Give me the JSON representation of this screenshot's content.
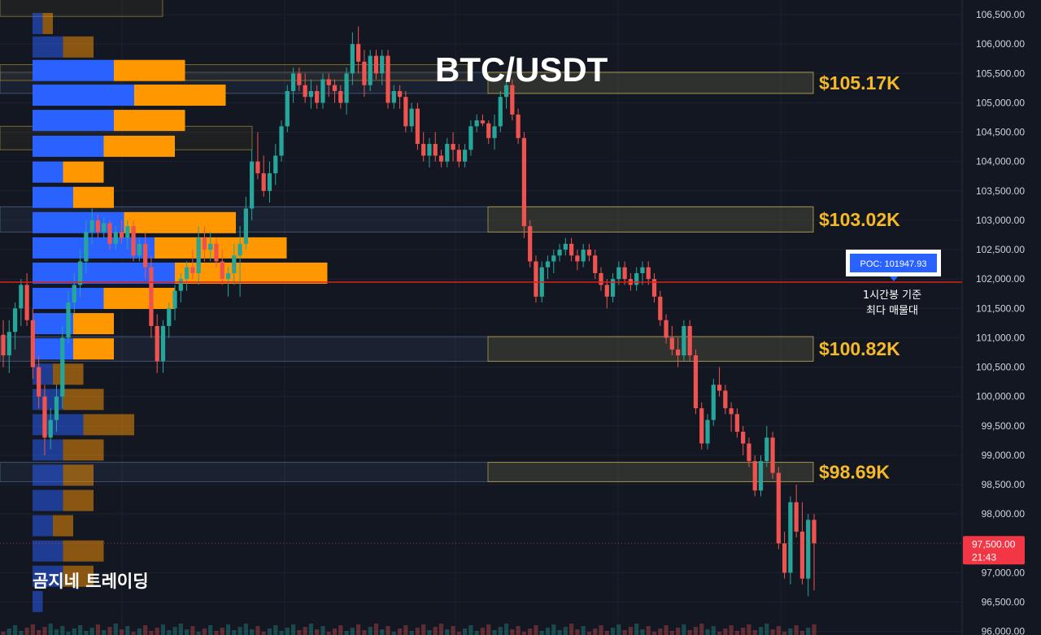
{
  "chart_data": {
    "type": "candlestick",
    "title": "BTC/USDT",
    "symbol": "BTC/USDT",
    "watermark": "곰지네 트레이딩",
    "ylim": [
      95940,
      106750
    ],
    "y_ticks": [
      {
        "value": 106500,
        "label": "106,500.00"
      },
      {
        "value": 106000,
        "label": "106,000.00"
      },
      {
        "value": 105500,
        "label": "105,500.00"
      },
      {
        "value": 105000,
        "label": "105,000.00"
      },
      {
        "value": 104500,
        "label": "104,500.00"
      },
      {
        "value": 104000,
        "label": "104,000.00"
      },
      {
        "value": 103500,
        "label": "103,500.00"
      },
      {
        "value": 103000,
        "label": "103,000.00"
      },
      {
        "value": 102500,
        "label": "102,500.00"
      },
      {
        "value": 102000,
        "label": "102,000.00"
      },
      {
        "value": 101500,
        "label": "101,500.00"
      },
      {
        "value": 101000,
        "label": "101,000.00"
      },
      {
        "value": 100500,
        "label": "100,500.00"
      },
      {
        "value": 100000,
        "label": "100,000.00"
      },
      {
        "value": 99500,
        "label": "99,500.00"
      },
      {
        "value": 99000,
        "label": "99,000.00"
      },
      {
        "value": 98500,
        "label": "98,500.00"
      },
      {
        "value": 98000,
        "label": "98,000.00"
      },
      {
        "value": 97000,
        "label": "97,000.00"
      },
      {
        "value": 96500,
        "label": "96,500.00"
      },
      {
        "value": 96000,
        "label": "96,000.00"
      }
    ],
    "current_price": {
      "value": 97500,
      "label": "97,500.00",
      "countdown": "21:43"
    },
    "poc": {
      "value": 101947.93,
      "label": "POC: 101947.93",
      "note_line1": "1시간봉 기준",
      "note_line2": "최다 매물대"
    },
    "levels": [
      {
        "label": "$105.17K",
        "low": 105160,
        "high": 105520
      },
      {
        "label": "$103.02K",
        "low": 102800,
        "high": 103230
      },
      {
        "label": "$100.82K",
        "low": 100600,
        "high": 101020
      },
      {
        "label": "$98.69K",
        "low": 98550,
        "high": 98880
      }
    ],
    "volume_profile": [
      {
        "price": 106350,
        "up": 1,
        "down": 1
      },
      {
        "price": 105950,
        "up": 3,
        "down": 3
      },
      {
        "price": 105550,
        "up": 8,
        "down": 7
      },
      {
        "price": 105130,
        "up": 10,
        "down": 9
      },
      {
        "price": 104700,
        "up": 8,
        "down": 7
      },
      {
        "price": 104260,
        "up": 7,
        "down": 7
      },
      {
        "price": 103820,
        "up": 3,
        "down": 4
      },
      {
        "price": 103390,
        "up": 4,
        "down": 4
      },
      {
        "price": 102960,
        "up": 9,
        "down": 11
      },
      {
        "price": 102530,
        "up": 12,
        "down": 13
      },
      {
        "price": 102100,
        "up": 14,
        "down": 15
      },
      {
        "price": 101670,
        "up": 7,
        "down": 7
      },
      {
        "price": 101240,
        "up": 4,
        "down": 4
      },
      {
        "price": 100810,
        "up": 4,
        "down": 4
      },
      {
        "price": 100380,
        "up": 2,
        "down": 3
      },
      {
        "price": 99950,
        "up": 3,
        "down": 4
      },
      {
        "price": 99520,
        "up": 5,
        "down": 5
      },
      {
        "price": 99090,
        "up": 3,
        "down": 4
      },
      {
        "price": 98660,
        "up": 3,
        "down": 3
      },
      {
        "price": 98230,
        "up": 3,
        "down": 3
      },
      {
        "price": 97800,
        "up": 2,
        "down": 2
      },
      {
        "price": 97370,
        "up": 3,
        "down": 4
      },
      {
        "price": 96940,
        "up": 3,
        "down": 3
      },
      {
        "price": 96510,
        "up": 1,
        "down": 0
      }
    ],
    "candles": [
      {
        "o": 101050,
        "h": 101300,
        "l": 100500,
        "c": 100700
      },
      {
        "o": 100700,
        "h": 101300,
        "l": 100400,
        "c": 101100
      },
      {
        "o": 101100,
        "h": 101600,
        "l": 100800,
        "c": 101500
      },
      {
        "o": 101500,
        "h": 102000,
        "l": 101200,
        "c": 101900
      },
      {
        "o": 101900,
        "h": 102100,
        "l": 101200,
        "c": 101300
      },
      {
        "o": 101300,
        "h": 101500,
        "l": 100300,
        "c": 100500
      },
      {
        "o": 100500,
        "h": 100700,
        "l": 99800,
        "c": 100000
      },
      {
        "o": 100000,
        "h": 100200,
        "l": 99000,
        "c": 99300
      },
      {
        "o": 99300,
        "h": 99800,
        "l": 99100,
        "c": 99600
      },
      {
        "o": 99600,
        "h": 100200,
        "l": 99400,
        "c": 100000
      },
      {
        "o": 100000,
        "h": 101200,
        "l": 99800,
        "c": 101000
      },
      {
        "o": 101000,
        "h": 101800,
        "l": 100900,
        "c": 101600
      },
      {
        "o": 101600,
        "h": 102100,
        "l": 101400,
        "c": 101900
      },
      {
        "o": 101900,
        "h": 102500,
        "l": 101700,
        "c": 102300
      },
      {
        "o": 102300,
        "h": 103000,
        "l": 102100,
        "c": 102800
      },
      {
        "o": 102800,
        "h": 103200,
        "l": 102600,
        "c": 103000
      },
      {
        "o": 103000,
        "h": 103100,
        "l": 102700,
        "c": 102800
      },
      {
        "o": 102800,
        "h": 103050,
        "l": 102700,
        "c": 102950
      },
      {
        "o": 102950,
        "h": 103000,
        "l": 102500,
        "c": 102600
      },
      {
        "o": 102600,
        "h": 102900,
        "l": 102500,
        "c": 102800
      },
      {
        "o": 102800,
        "h": 103000,
        "l": 102600,
        "c": 102700
      },
      {
        "o": 102700,
        "h": 103000,
        "l": 102500,
        "c": 102900
      },
      {
        "o": 102900,
        "h": 103000,
        "l": 102300,
        "c": 102400
      },
      {
        "o": 102400,
        "h": 102700,
        "l": 102300,
        "c": 102600
      },
      {
        "o": 102600,
        "h": 102800,
        "l": 102000,
        "c": 102200
      },
      {
        "o": 102200,
        "h": 102400,
        "l": 101000,
        "c": 101200
      },
      {
        "o": 101200,
        "h": 101400,
        "l": 100400,
        "c": 100600
      },
      {
        "o": 100600,
        "h": 101300,
        "l": 100400,
        "c": 101200
      },
      {
        "o": 101200,
        "h": 101600,
        "l": 101000,
        "c": 101500
      },
      {
        "o": 101500,
        "h": 101900,
        "l": 101300,
        "c": 101800
      },
      {
        "o": 101800,
        "h": 102100,
        "l": 101600,
        "c": 102000
      },
      {
        "o": 102000,
        "h": 102300,
        "l": 101800,
        "c": 102200
      },
      {
        "o": 102200,
        "h": 102500,
        "l": 102000,
        "c": 102100
      },
      {
        "o": 102100,
        "h": 102900,
        "l": 101900,
        "c": 102700
      },
      {
        "o": 102700,
        "h": 102900,
        "l": 102300,
        "c": 102500
      },
      {
        "o": 102500,
        "h": 102800,
        "l": 102300,
        "c": 102600
      },
      {
        "o": 102600,
        "h": 102700,
        "l": 102200,
        "c": 102300
      },
      {
        "o": 102300,
        "h": 102500,
        "l": 101900,
        "c": 102000
      },
      {
        "o": 102000,
        "h": 102200,
        "l": 101700,
        "c": 102100
      },
      {
        "o": 102100,
        "h": 102600,
        "l": 101900,
        "c": 102400
      },
      {
        "o": 102400,
        "h": 102900,
        "l": 101700,
        "c": 102600
      },
      {
        "o": 102600,
        "h": 103400,
        "l": 102500,
        "c": 103200
      },
      {
        "o": 103200,
        "h": 104200,
        "l": 103000,
        "c": 104000
      },
      {
        "o": 104000,
        "h": 104500,
        "l": 103700,
        "c": 103800
      },
      {
        "o": 103800,
        "h": 104100,
        "l": 103400,
        "c": 103500
      },
      {
        "o": 103500,
        "h": 104000,
        "l": 103300,
        "c": 103800
      },
      {
        "o": 103800,
        "h": 104300,
        "l": 103600,
        "c": 104100
      },
      {
        "o": 104100,
        "h": 104700,
        "l": 104000,
        "c": 104600
      },
      {
        "o": 104600,
        "h": 105300,
        "l": 104500,
        "c": 105200
      },
      {
        "o": 105200,
        "h": 105600,
        "l": 105000,
        "c": 105500
      },
      {
        "o": 105500,
        "h": 105600,
        "l": 105200,
        "c": 105300
      },
      {
        "o": 105300,
        "h": 105500,
        "l": 105000,
        "c": 105100
      },
      {
        "o": 105100,
        "h": 105400,
        "l": 104900,
        "c": 105200
      },
      {
        "o": 105200,
        "h": 105300,
        "l": 104900,
        "c": 105000
      },
      {
        "o": 105000,
        "h": 105500,
        "l": 104900,
        "c": 105400
      },
      {
        "o": 105400,
        "h": 105500,
        "l": 105100,
        "c": 105300
      },
      {
        "o": 105300,
        "h": 105400,
        "l": 105000,
        "c": 105200
      },
      {
        "o": 105200,
        "h": 105300,
        "l": 104900,
        "c": 105000
      },
      {
        "o": 105000,
        "h": 105600,
        "l": 104800,
        "c": 105500
      },
      {
        "o": 105500,
        "h": 106200,
        "l": 105300,
        "c": 106000
      },
      {
        "o": 106000,
        "h": 106300,
        "l": 105500,
        "c": 105700
      },
      {
        "o": 105700,
        "h": 105900,
        "l": 105100,
        "c": 105300
      },
      {
        "o": 105300,
        "h": 105900,
        "l": 105200,
        "c": 105800
      },
      {
        "o": 105800,
        "h": 105900,
        "l": 105400,
        "c": 105500
      },
      {
        "o": 105500,
        "h": 105900,
        "l": 105300,
        "c": 105800
      },
      {
        "o": 105800,
        "h": 105900,
        "l": 104900,
        "c": 105000
      },
      {
        "o": 105000,
        "h": 105300,
        "l": 104900,
        "c": 105200
      },
      {
        "o": 105200,
        "h": 105300,
        "l": 104900,
        "c": 105100
      },
      {
        "o": 105100,
        "h": 105200,
        "l": 104500,
        "c": 104600
      },
      {
        "o": 104600,
        "h": 105000,
        "l": 104500,
        "c": 104900
      },
      {
        "o": 104900,
        "h": 105000,
        "l": 104200,
        "c": 104300
      },
      {
        "o": 104300,
        "h": 104500,
        "l": 104000,
        "c": 104100
      },
      {
        "o": 104100,
        "h": 104400,
        "l": 103900,
        "c": 104300
      },
      {
        "o": 104300,
        "h": 104500,
        "l": 104000,
        "c": 104100
      },
      {
        "o": 104100,
        "h": 104200,
        "l": 103900,
        "c": 104000
      },
      {
        "o": 104000,
        "h": 104400,
        "l": 103900,
        "c": 104300
      },
      {
        "o": 104300,
        "h": 104500,
        "l": 104000,
        "c": 104200
      },
      {
        "o": 104200,
        "h": 104300,
        "l": 103900,
        "c": 104000
      },
      {
        "o": 104000,
        "h": 104300,
        "l": 103900,
        "c": 104200
      },
      {
        "o": 104200,
        "h": 104700,
        "l": 104100,
        "c": 104600
      },
      {
        "o": 104600,
        "h": 104800,
        "l": 104500,
        "c": 104700
      },
      {
        "o": 104700,
        "h": 104800,
        "l": 104600,
        "c": 104650
      },
      {
        "o": 104650,
        "h": 104700,
        "l": 104300,
        "c": 104400
      },
      {
        "o": 104400,
        "h": 104800,
        "l": 104200,
        "c": 104600
      },
      {
        "o": 104600,
        "h": 105200,
        "l": 104500,
        "c": 105100
      },
      {
        "o": 105100,
        "h": 105400,
        "l": 104900,
        "c": 105300
      },
      {
        "o": 105300,
        "h": 105400,
        "l": 104700,
        "c": 104800
      },
      {
        "o": 104800,
        "h": 104900,
        "l": 104300,
        "c": 104400
      },
      {
        "o": 104400,
        "h": 104500,
        "l": 102700,
        "c": 102900
      },
      {
        "o": 102900,
        "h": 103000,
        "l": 102200,
        "c": 102300
      },
      {
        "o": 102300,
        "h": 102400,
        "l": 101600,
        "c": 101700
      },
      {
        "o": 101700,
        "h": 102300,
        "l": 101600,
        "c": 102200
      },
      {
        "o": 102200,
        "h": 102400,
        "l": 102000,
        "c": 102300
      },
      {
        "o": 102300,
        "h": 102500,
        "l": 102100,
        "c": 102400
      },
      {
        "o": 102400,
        "h": 102600,
        "l": 102300,
        "c": 102500
      },
      {
        "o": 102500,
        "h": 102700,
        "l": 102400,
        "c": 102600
      },
      {
        "o": 102600,
        "h": 102700,
        "l": 102300,
        "c": 102400
      },
      {
        "o": 102400,
        "h": 102500,
        "l": 102150,
        "c": 102300
      },
      {
        "o": 102300,
        "h": 102600,
        "l": 102200,
        "c": 102500
      },
      {
        "o": 102500,
        "h": 102600,
        "l": 102300,
        "c": 102400
      },
      {
        "o": 102400,
        "h": 102500,
        "l": 102000,
        "c": 102100
      },
      {
        "o": 102100,
        "h": 102200,
        "l": 101800,
        "c": 101900
      },
      {
        "o": 101900,
        "h": 102000,
        "l": 101500,
        "c": 101700
      },
      {
        "o": 101700,
        "h": 102100,
        "l": 101600,
        "c": 102000
      },
      {
        "o": 102000,
        "h": 102300,
        "l": 101900,
        "c": 102200
      },
      {
        "o": 102200,
        "h": 102300,
        "l": 101900,
        "c": 102000
      },
      {
        "o": 102000,
        "h": 102100,
        "l": 101800,
        "c": 101900
      },
      {
        "o": 101900,
        "h": 102200,
        "l": 101800,
        "c": 102100
      },
      {
        "o": 102100,
        "h": 102300,
        "l": 101900,
        "c": 102200
      },
      {
        "o": 102200,
        "h": 102300,
        "l": 101900,
        "c": 102000
      },
      {
        "o": 102000,
        "h": 102100,
        "l": 101600,
        "c": 101700
      },
      {
        "o": 101700,
        "h": 101800,
        "l": 101200,
        "c": 101300
      },
      {
        "o": 101300,
        "h": 101400,
        "l": 100900,
        "c": 101000
      },
      {
        "o": 101000,
        "h": 101200,
        "l": 100700,
        "c": 100800
      },
      {
        "o": 100800,
        "h": 101000,
        "l": 100500,
        "c": 100700
      },
      {
        "o": 100700,
        "h": 101300,
        "l": 100600,
        "c": 101200
      },
      {
        "o": 101200,
        "h": 101300,
        "l": 100600,
        "c": 100700
      },
      {
        "o": 100700,
        "h": 100800,
        "l": 99700,
        "c": 99800
      },
      {
        "o": 99800,
        "h": 99900,
        "l": 99100,
        "c": 99200
      },
      {
        "o": 99200,
        "h": 99700,
        "l": 99100,
        "c": 99600
      },
      {
        "o": 99600,
        "h": 100300,
        "l": 99500,
        "c": 100200
      },
      {
        "o": 100200,
        "h": 100500,
        "l": 100000,
        "c": 100100
      },
      {
        "o": 100100,
        "h": 100200,
        "l": 99700,
        "c": 99800
      },
      {
        "o": 99800,
        "h": 99900,
        "l": 99400,
        "c": 99700
      },
      {
        "o": 99700,
        "h": 99800,
        "l": 99300,
        "c": 99400
      },
      {
        "o": 99400,
        "h": 99500,
        "l": 99000,
        "c": 99200
      },
      {
        "o": 99200,
        "h": 99300,
        "l": 98800,
        "c": 98900
      },
      {
        "o": 98900,
        "h": 99000,
        "l": 98300,
        "c": 98400
      },
      {
        "o": 98400,
        "h": 99000,
        "l": 98300,
        "c": 98900
      },
      {
        "o": 98900,
        "h": 99500,
        "l": 98800,
        "c": 99300
      },
      {
        "o": 99300,
        "h": 99400,
        "l": 98600,
        "c": 98700
      },
      {
        "o": 98700,
        "h": 98800,
        "l": 97400,
        "c": 97500
      },
      {
        "o": 97500,
        "h": 97700,
        "l": 96900,
        "c": 97000
      },
      {
        "o": 97000,
        "h": 98300,
        "l": 96800,
        "c": 98200
      },
      {
        "o": 98200,
        "h": 98500,
        "l": 97600,
        "c": 97700
      },
      {
        "o": 97700,
        "h": 98200,
        "l": 96800,
        "c": 96900
      },
      {
        "o": 96900,
        "h": 98000,
        "l": 96600,
        "c": 97900
      },
      {
        "o": 97900,
        "h": 98000,
        "l": 96700,
        "c": 97500
      }
    ]
  },
  "colors": {
    "background": "#131722",
    "bull": "#26a69a",
    "bear": "#ef5350",
    "profile_up": "#2962ff",
    "profile_down": "#ff9800",
    "level_text": "#f5b827",
    "poc_line": "#e0201a",
    "poc_tag": "#2962ff",
    "price_tag": "#f23645"
  }
}
